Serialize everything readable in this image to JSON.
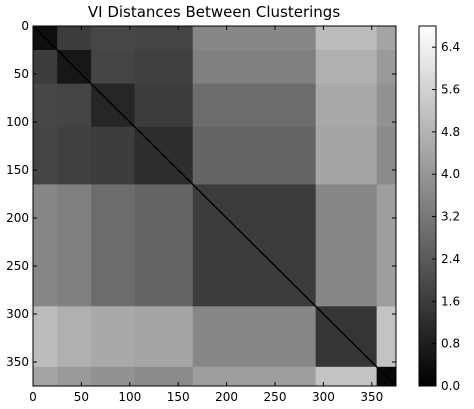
{
  "chart_data": {
    "type": "heatmap",
    "title": "VI Distances Between Clusterings",
    "xlabel": "",
    "ylabel": "",
    "colormap": "gray",
    "grid": false,
    "xlim": [
      0,
      375
    ],
    "ylim": [
      375,
      0
    ],
    "x_ticks": [
      "0",
      "50",
      "100",
      "150",
      "200",
      "250",
      "300",
      "350"
    ],
    "y_ticks": [
      "0",
      "50",
      "100",
      "150",
      "200",
      "250",
      "300",
      "350"
    ],
    "colorbar": {
      "min": 0.0,
      "max": 6.8,
      "ticks": [
        "0.0",
        "0.8",
        "1.6",
        "2.4",
        "3.2",
        "4.0",
        "4.8",
        "5.6",
        "6.4"
      ]
    },
    "block_boundaries": [
      0,
      25,
      60,
      105,
      165,
      292,
      355,
      375
    ],
    "block_values": [
      [
        0.4,
        1.6,
        1.9,
        1.8,
        3.6,
        5.0,
        4.4
      ],
      [
        1.6,
        0.6,
        1.8,
        1.7,
        3.4,
        4.7,
        4.1
      ],
      [
        1.9,
        1.8,
        1.0,
        1.6,
        2.9,
        4.5,
        3.9
      ],
      [
        1.8,
        1.7,
        1.6,
        1.2,
        2.7,
        4.4,
        3.7
      ],
      [
        3.6,
        3.4,
        2.9,
        2.7,
        1.6,
        3.6,
        4.2
      ],
      [
        5.0,
        4.7,
        4.5,
        4.4,
        3.6,
        1.4,
        5.2
      ],
      [
        4.4,
        4.1,
        3.9,
        3.7,
        4.2,
        5.2,
        0.2
      ]
    ]
  }
}
